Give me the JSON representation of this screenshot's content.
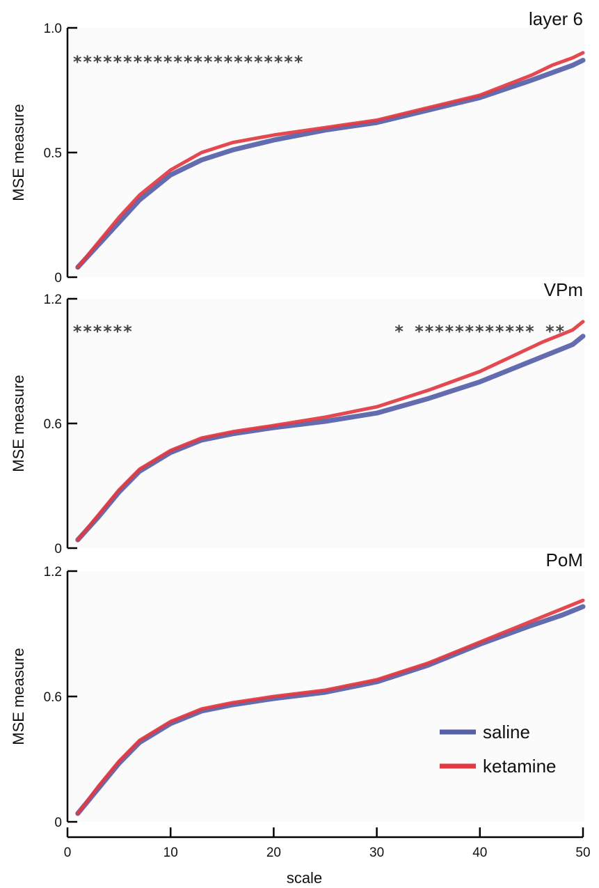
{
  "chart_data": [
    {
      "type": "line",
      "title": "layer 6",
      "ylabel": "MSE measure",
      "xlim": [
        0,
        50
      ],
      "ylim": [
        0,
        1.0
      ],
      "yticks": [
        "0",
        "0.5",
        "1.0"
      ],
      "significance": "***********************",
      "series": [
        {
          "name": "saline",
          "x": [
            1,
            3,
            5,
            7,
            10,
            13,
            16,
            20,
            25,
            30,
            35,
            40,
            45,
            47,
            49,
            50
          ],
          "y": [
            0.04,
            0.13,
            0.22,
            0.31,
            0.41,
            0.47,
            0.51,
            0.55,
            0.59,
            0.62,
            0.67,
            0.72,
            0.79,
            0.82,
            0.85,
            0.87
          ]
        },
        {
          "name": "ketamine",
          "x": [
            1,
            3,
            5,
            7,
            10,
            13,
            16,
            20,
            25,
            30,
            35,
            40,
            45,
            47,
            49,
            50
          ],
          "y": [
            0.04,
            0.14,
            0.24,
            0.33,
            0.43,
            0.5,
            0.54,
            0.57,
            0.6,
            0.63,
            0.68,
            0.73,
            0.81,
            0.85,
            0.88,
            0.9
          ]
        }
      ]
    },
    {
      "type": "line",
      "title": "VPm",
      "ylabel": "MSE measure",
      "xlim": [
        0,
        50
      ],
      "ylim": [
        0,
        1.2
      ],
      "yticks": [
        "0",
        "0.6",
        "1.2"
      ],
      "significance": "******                          * ************ **       *  *    ** *",
      "series": [
        {
          "name": "saline",
          "x": [
            1,
            3,
            5,
            7,
            10,
            13,
            16,
            20,
            25,
            30,
            35,
            40,
            43,
            46,
            48,
            49,
            50
          ],
          "y": [
            0.04,
            0.15,
            0.27,
            0.37,
            0.46,
            0.52,
            0.55,
            0.58,
            0.61,
            0.65,
            0.72,
            0.8,
            0.86,
            0.92,
            0.96,
            0.98,
            1.02
          ]
        },
        {
          "name": "ketamine",
          "x": [
            1,
            3,
            5,
            7,
            10,
            13,
            16,
            20,
            25,
            30,
            35,
            40,
            43,
            46,
            48,
            49,
            50
          ],
          "y": [
            0.04,
            0.16,
            0.28,
            0.38,
            0.47,
            0.53,
            0.56,
            0.59,
            0.63,
            0.68,
            0.76,
            0.85,
            0.92,
            0.99,
            1.03,
            1.05,
            1.09
          ]
        }
      ]
    },
    {
      "type": "line",
      "title": "PoM",
      "xlabel": "scale",
      "ylabel": "MSE measure",
      "xlim": [
        0,
        50
      ],
      "ylim": [
        0,
        1.2
      ],
      "xticks": [
        "0",
        "10",
        "20",
        "30",
        "40",
        "50"
      ],
      "yticks": [
        "0",
        "0.6",
        "1.2"
      ],
      "series": [
        {
          "name": "saline",
          "x": [
            1,
            3,
            5,
            7,
            10,
            13,
            16,
            20,
            25,
            30,
            35,
            40,
            45,
            48,
            50
          ],
          "y": [
            0.04,
            0.16,
            0.28,
            0.38,
            0.47,
            0.53,
            0.56,
            0.59,
            0.62,
            0.67,
            0.75,
            0.85,
            0.94,
            0.99,
            1.03
          ]
        },
        {
          "name": "ketamine",
          "x": [
            1,
            3,
            5,
            7,
            10,
            13,
            16,
            20,
            25,
            30,
            35,
            40,
            45,
            48,
            50
          ],
          "y": [
            0.04,
            0.17,
            0.29,
            0.39,
            0.48,
            0.54,
            0.57,
            0.6,
            0.63,
            0.68,
            0.76,
            0.86,
            0.96,
            1.02,
            1.06
          ]
        }
      ]
    }
  ],
  "legend": {
    "items": [
      {
        "label": "saline",
        "color": "#5560a8"
      },
      {
        "label": "ketamine",
        "color": "#e23a42"
      }
    ]
  }
}
